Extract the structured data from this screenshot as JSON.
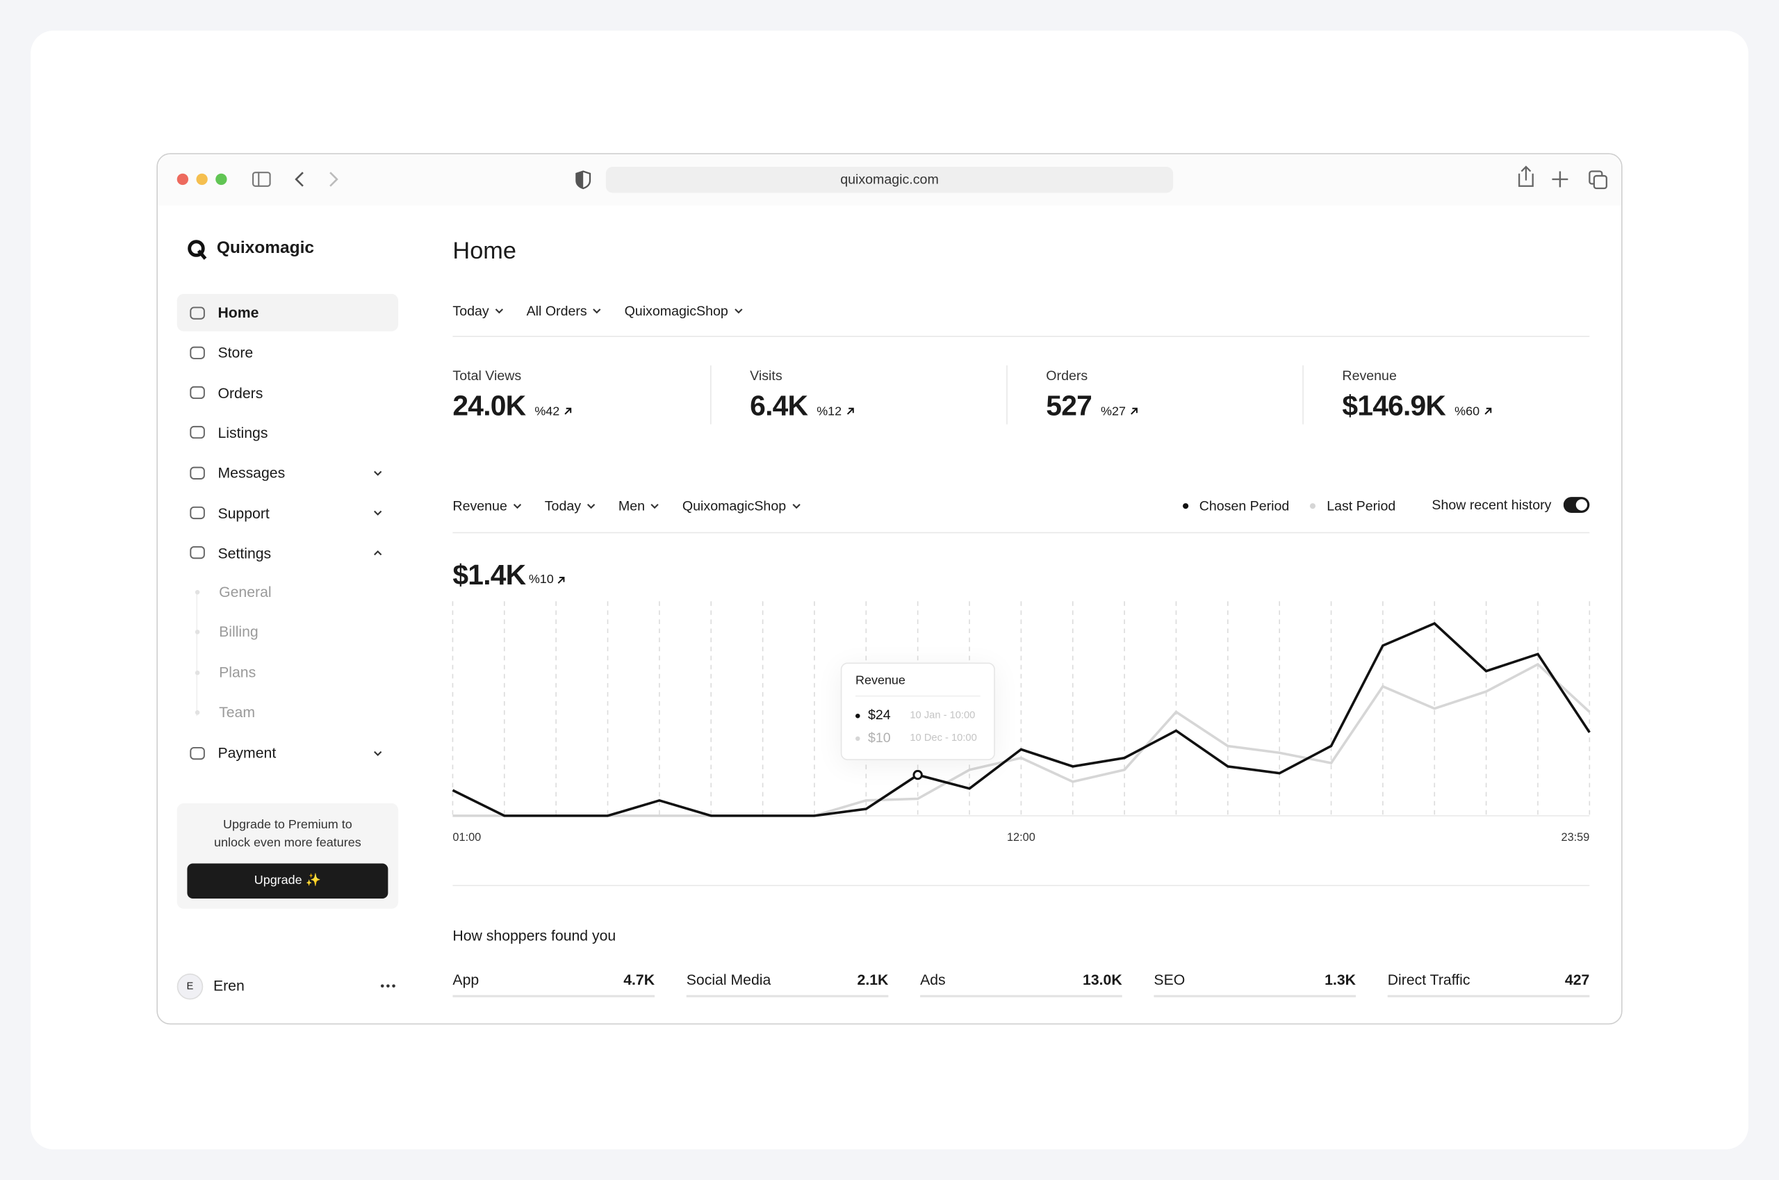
{
  "browser": {
    "url": "quixomagic.com"
  },
  "sidebar": {
    "brand": "Quixomagic",
    "nav": [
      {
        "label": "Home",
        "active": true
      },
      {
        "label": "Store"
      },
      {
        "label": "Orders"
      },
      {
        "label": "Listings"
      },
      {
        "label": "Messages",
        "expanded": false
      },
      {
        "label": "Support",
        "expanded": false
      },
      {
        "label": "Settings",
        "expanded": true,
        "children": [
          "General",
          "Billing",
          "Plans",
          "Team"
        ]
      },
      {
        "label": "Payment",
        "expanded": false
      }
    ],
    "upgrade": {
      "text": "Upgrade to Premium to unlock even more features",
      "button": "Upgrade ✨"
    },
    "user": {
      "initial": "E",
      "name": "Eren"
    }
  },
  "main": {
    "title": "Home",
    "filters": [
      "Today",
      "All Orders",
      "QuixomagicShop"
    ],
    "kpis": [
      {
        "label": "Total Views",
        "value": "24.0K",
        "change": "%42"
      },
      {
        "label": "Visits",
        "value": "6.4K",
        "change": "%12"
      },
      {
        "label": "Orders",
        "value": "527",
        "change": "%27"
      },
      {
        "label": "Revenue",
        "value": "$146.9K",
        "change": "%60"
      }
    ],
    "chart_panel": {
      "filters": [
        "Revenue",
        "Today",
        "Men",
        "QuixomagicShop"
      ],
      "toggle_label": "Show recent history",
      "toggle_on": true,
      "total": "$1.4K",
      "change": "%10",
      "tooltip": {
        "title": "Revenue",
        "rows": [
          {
            "value": "$24",
            "date": "10 Jan - 10:00"
          },
          {
            "value": "$10",
            "date": "10 Dec - 10:00"
          }
        ]
      }
    },
    "sources": {
      "title": "How shoppers found you",
      "items": [
        {
          "label": "App",
          "value": "4.7K"
        },
        {
          "label": "Social Media",
          "value": "2.1K"
        },
        {
          "label": "Ads",
          "value": "13.0K"
        },
        {
          "label": "SEO",
          "value": "1.3K"
        },
        {
          "label": "Direct Traffic",
          "value": "427"
        }
      ]
    }
  },
  "chart_data": {
    "type": "line",
    "categories": [
      "01:00",
      null,
      null,
      null,
      null,
      null,
      null,
      null,
      null,
      null,
      null,
      "12:00",
      null,
      null,
      null,
      null,
      null,
      null,
      null,
      null,
      null,
      null,
      "23:59"
    ],
    "series": [
      {
        "name": "Chosen Period",
        "color": "#111111",
        "values": [
          15,
          0,
          0,
          0,
          9,
          0,
          0,
          0,
          4,
          24,
          16,
          39,
          29,
          34,
          50,
          29,
          25,
          41,
          100,
          113,
          85,
          95,
          49
        ]
      },
      {
        "name": "Last Period",
        "color": "#d6d6d6",
        "values": [
          0,
          0,
          0,
          0,
          0,
          0,
          0,
          0,
          9,
          10,
          27,
          34,
          20,
          27,
          61,
          41,
          37,
          31,
          76,
          63,
          73,
          89,
          61
        ]
      }
    ],
    "ylim": [
      0,
      122
    ],
    "grid": true
  }
}
